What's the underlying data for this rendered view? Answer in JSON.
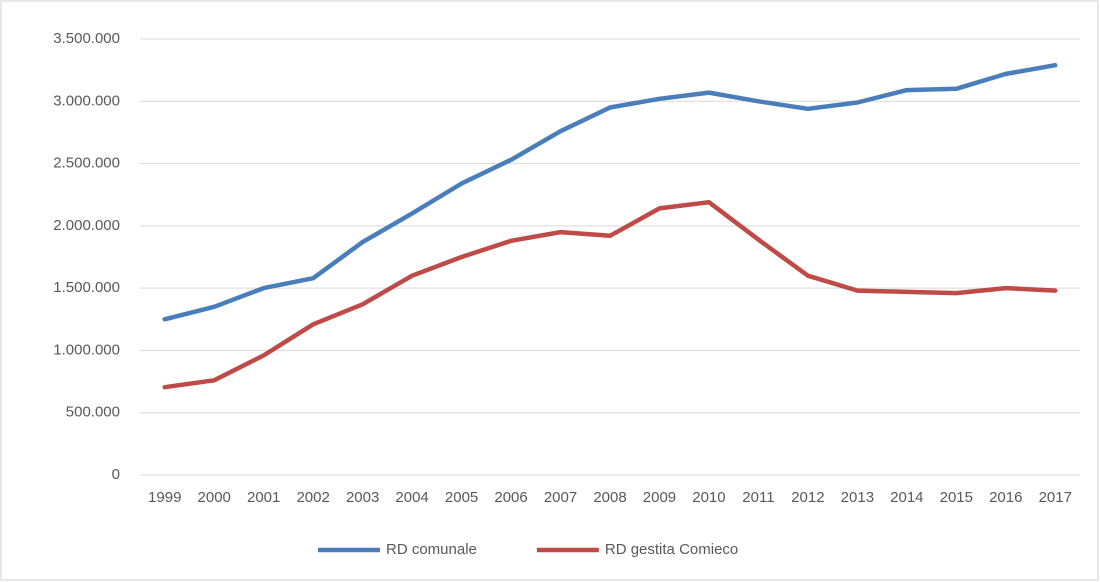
{
  "chart_data": {
    "type": "line",
    "categories": [
      "1999",
      "2000",
      "2001",
      "2002",
      "2003",
      "2004",
      "2005",
      "2006",
      "2007",
      "2008",
      "2009",
      "2010",
      "2011",
      "2012",
      "2013",
      "2014",
      "2015",
      "2016",
      "2017"
    ],
    "series": [
      {
        "name": "RD comunale",
        "color": "#4a7ebb",
        "values": [
          1250000,
          1350000,
          1500000,
          1580000,
          1870000,
          2100000,
          2340000,
          2530000,
          2760000,
          2950000,
          3020000,
          3070000,
          3000000,
          2940000,
          2990000,
          3090000,
          3100000,
          3220000,
          3290000
        ]
      },
      {
        "name": "RD gestita Comieco",
        "color": "#be4b48",
        "values": [
          705000,
          760000,
          960000,
          1210000,
          1370000,
          1600000,
          1750000,
          1880000,
          1950000,
          1920000,
          2140000,
          2190000,
          1890000,
          1600000,
          1480000,
          1470000,
          1460000,
          1500000,
          1480000
        ]
      }
    ],
    "ylim": [
      0,
      3500000
    ],
    "yticks": [
      0,
      {
        "value": 500000,
        "label": "500.000"
      },
      {
        "value": 1000000,
        "label": "1.000.000"
      },
      {
        "value": 1500000,
        "label": "1.500.000"
      },
      {
        "value": 2000000,
        "label": "2.000.000"
      },
      {
        "value": 2500000,
        "label": "2.500.000"
      },
      {
        "value": 3000000,
        "label": "3.000.000"
      },
      {
        "value": 3500000,
        "label": "3.500.000"
      }
    ],
    "grid": true,
    "legend": "bottom"
  }
}
